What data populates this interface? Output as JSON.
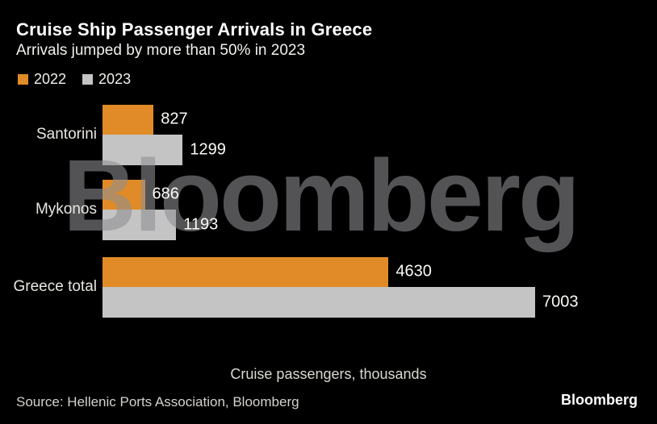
{
  "header": {
    "title": "Cruise Ship Passenger Arrivals in Greece",
    "subtitle": "Arrivals jumped by more than 50% in 2023"
  },
  "legend": [
    {
      "label": "2022",
      "color": "#E08B27"
    },
    {
      "label": "2023",
      "color": "#C4C4C4"
    }
  ],
  "chart_data": {
    "type": "bar",
    "orientation": "horizontal",
    "title": "Cruise Ship Passenger Arrivals in Greece",
    "subtitle": "Arrivals jumped by more than 50% in 2023",
    "categories": [
      "Santorini",
      "Mykonos",
      "Greece total"
    ],
    "series": [
      {
        "name": "2022",
        "color": "#E08B27",
        "values": [
          827,
          686,
          4630
        ]
      },
      {
        "name": "2023",
        "color": "#C4C4C4",
        "values": [
          1299,
          1193,
          7003
        ]
      }
    ],
    "xlabel": "Cruise passengers, thousands",
    "ylabel": "",
    "xlim": [
      0,
      7003
    ],
    "grid": false,
    "value_labels": true,
    "legend_position": "top-left"
  },
  "watermark": "Bloomberg",
  "footer": {
    "source": "Source: Hellenic Ports Association, Bloomberg",
    "logo": "Bloomberg"
  },
  "colors": {
    "background": "#000000",
    "accent_orange": "#E08B27",
    "bar_gray": "#C4C4C4",
    "watermark_gray": "#8F8F92",
    "text_white": "#FFFFFF"
  }
}
